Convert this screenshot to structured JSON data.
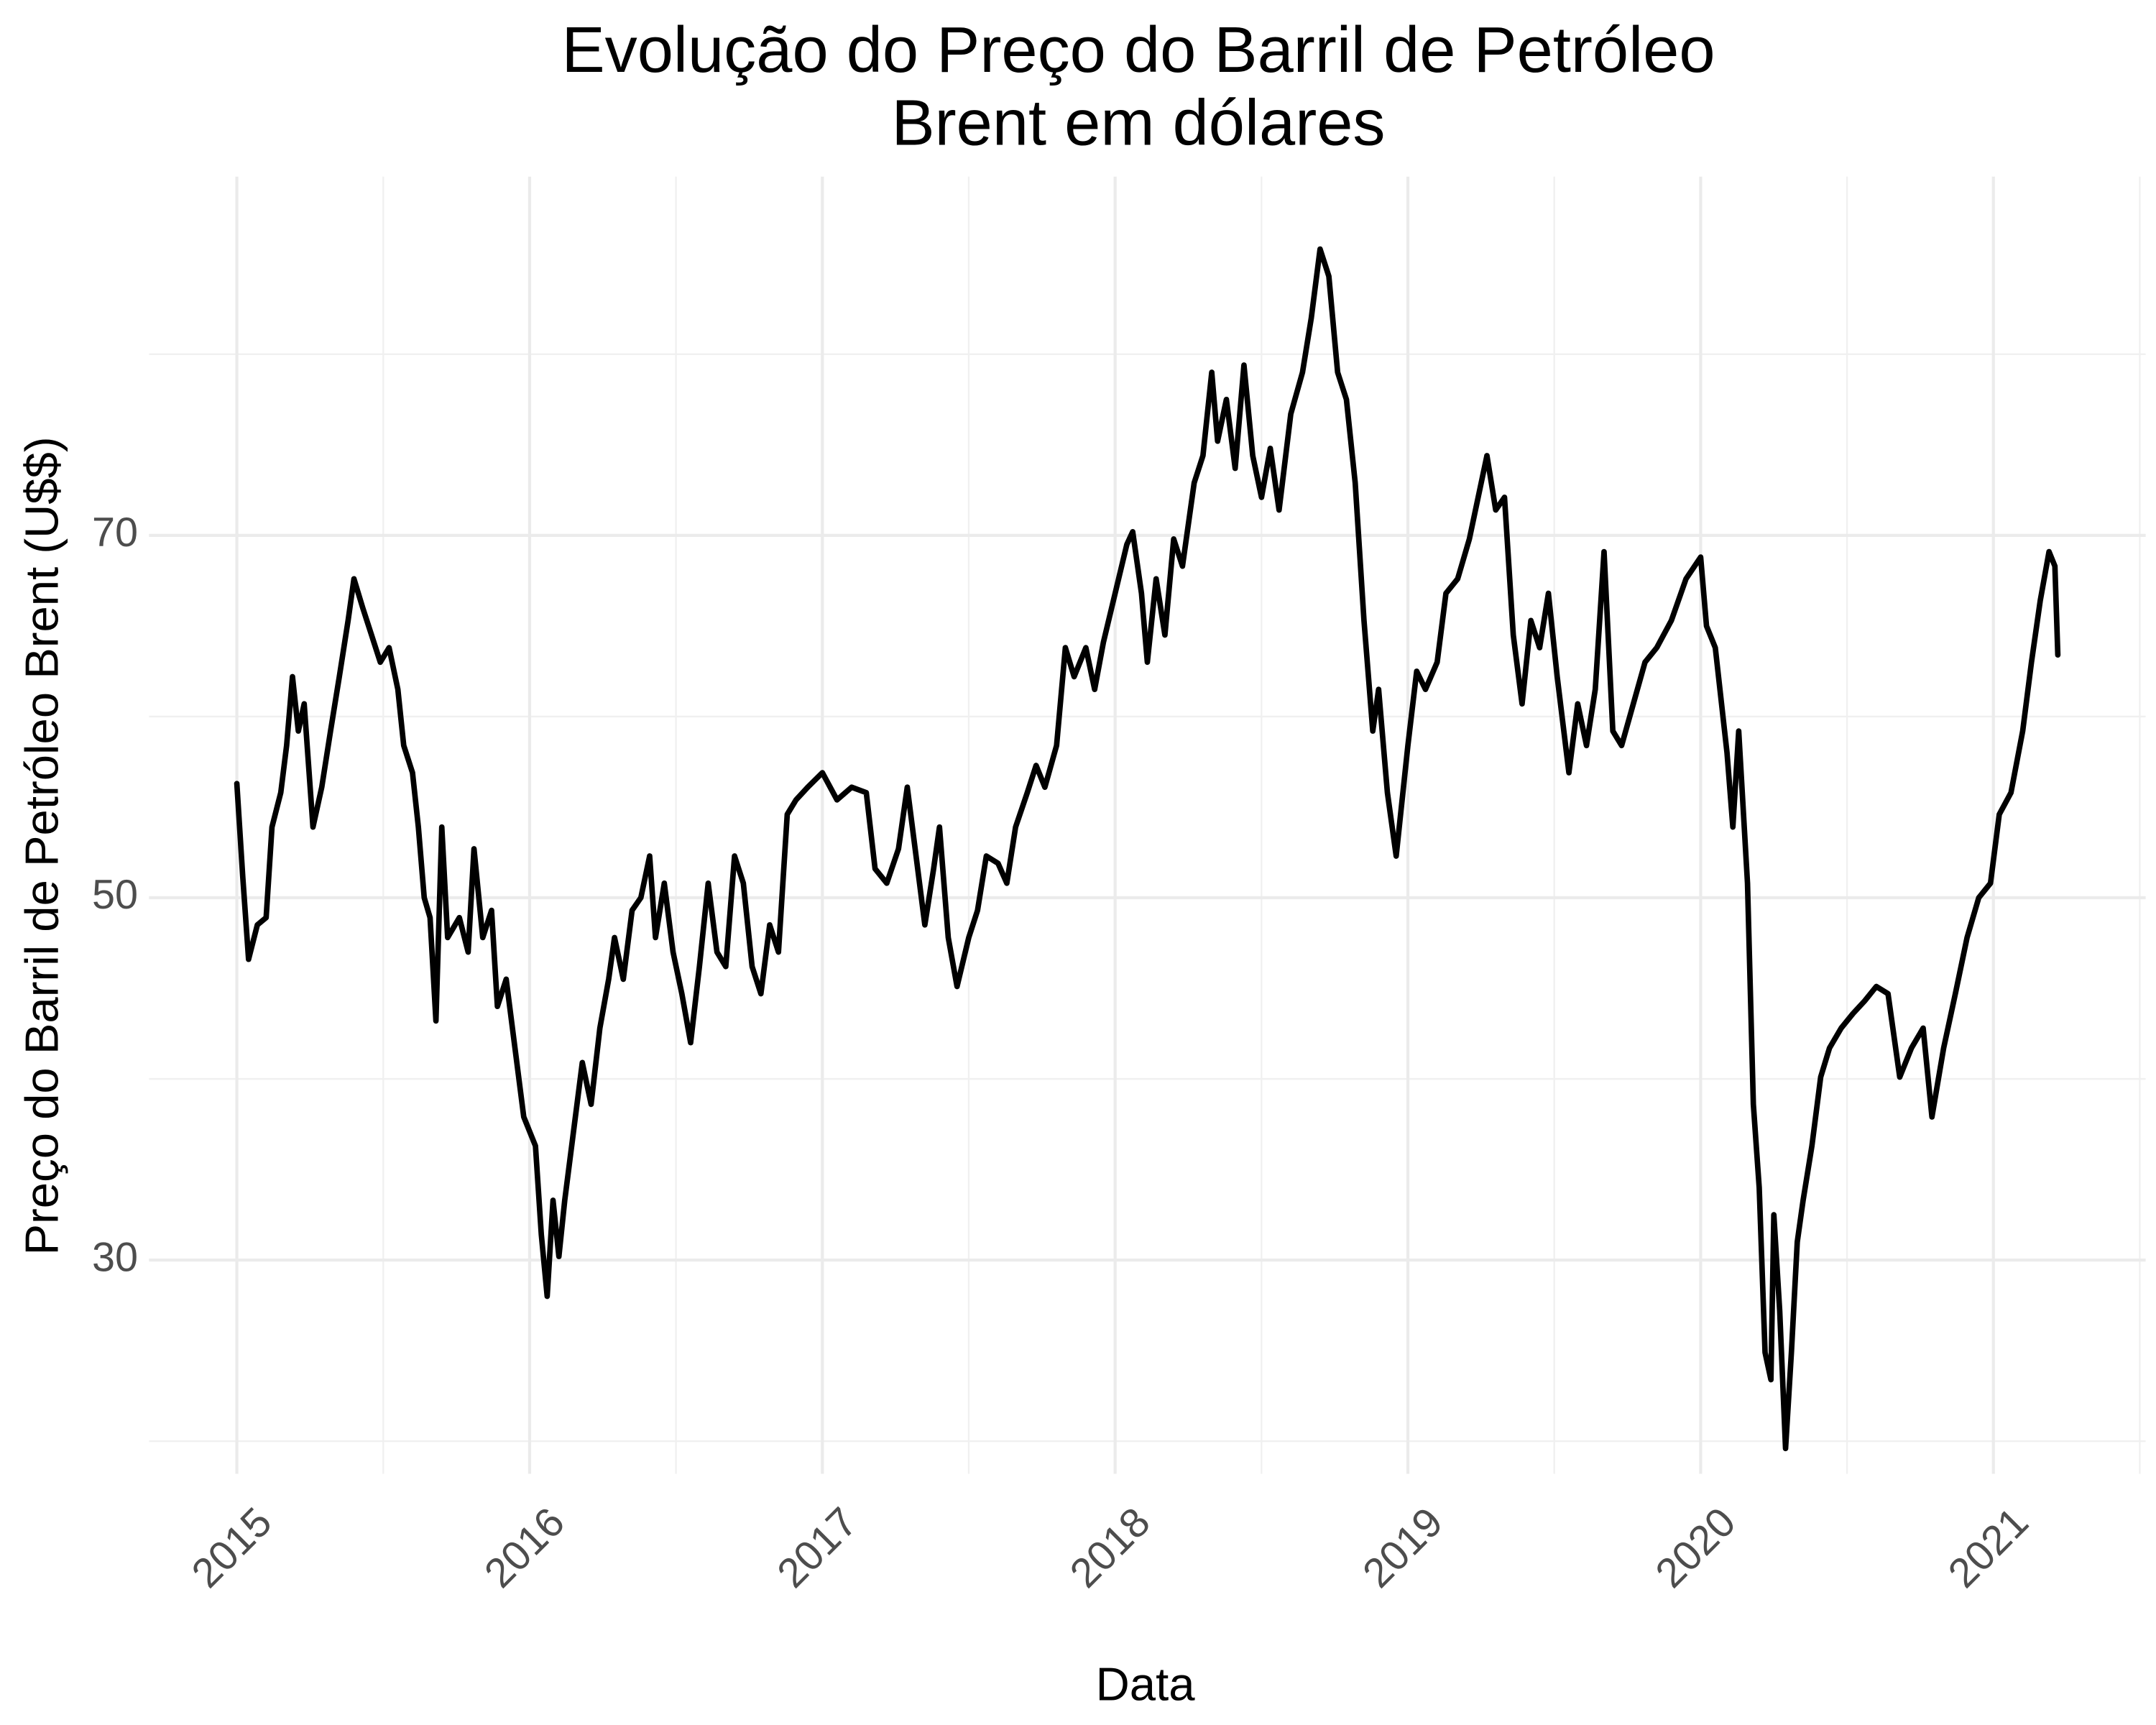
{
  "chart_data": {
    "type": "line",
    "title": [
      "Evolução do Preço do Barril de Petróleo",
      "Brent em dólares"
    ],
    "x_label": "Data",
    "y_label": "Preço do Barril de Petróleo Brent (U$$)",
    "color": "#000000",
    "grid": true,
    "minor_grid": true,
    "xlim": [
      2014.7,
      2021.52
    ],
    "ylim": [
      18.2,
      89.8
    ],
    "xticks": [
      2015,
      2016,
      2017,
      2018,
      2019,
      2020,
      2021
    ],
    "yticks": [
      30,
      50,
      70
    ],
    "x": [
      2015.0,
      2015.02,
      2015.04,
      2015.07,
      2015.1,
      2015.12,
      2015.15,
      2015.17,
      2015.19,
      2015.21,
      2015.23,
      2015.26,
      2015.29,
      2015.32,
      2015.35,
      2015.38,
      2015.4,
      2015.43,
      2015.46,
      2015.49,
      2015.52,
      2015.55,
      2015.57,
      2015.6,
      2015.62,
      2015.64,
      2015.66,
      2015.68,
      2015.7,
      2015.72,
      2015.76,
      2015.79,
      2015.81,
      2015.84,
      2015.87,
      2015.89,
      2015.92,
      2015.95,
      2015.98,
      2016.0,
      2016.02,
      2016.04,
      2016.06,
      2016.08,
      2016.1,
      2016.12,
      2016.15,
      2016.18,
      2016.21,
      2016.24,
      2016.27,
      2016.29,
      2016.32,
      2016.35,
      2016.38,
      2016.41,
      2016.43,
      2016.46,
      2016.49,
      2016.52,
      2016.55,
      2016.58,
      2016.61,
      2016.64,
      2016.67,
      2016.7,
      2016.73,
      2016.76,
      2016.79,
      2016.82,
      2016.85,
      2016.88,
      2016.91,
      2016.95,
      2017.0,
      2017.05,
      2017.1,
      2017.15,
      2017.18,
      2017.22,
      2017.26,
      2017.29,
      2017.32,
      2017.35,
      2017.38,
      2017.4,
      2017.43,
      2017.46,
      2017.5,
      2017.53,
      2017.56,
      2017.6,
      2017.63,
      2017.66,
      2017.7,
      2017.73,
      2017.76,
      2017.8,
      2017.83,
      2017.86,
      2017.9,
      2017.93,
      2017.96,
      2018.0,
      2018.04,
      2018.06,
      2018.09,
      2018.11,
      2018.14,
      2018.17,
      2018.2,
      2018.23,
      2018.27,
      2018.3,
      2018.33,
      2018.35,
      2018.38,
      2018.41,
      2018.44,
      2018.47,
      2018.5,
      2018.53,
      2018.56,
      2018.6,
      2018.64,
      2018.67,
      2018.7,
      2018.73,
      2018.76,
      2018.79,
      2018.82,
      2018.85,
      2018.88,
      2018.9,
      2018.93,
      2018.96,
      2019.0,
      2019.03,
      2019.06,
      2019.1,
      2019.13,
      2019.17,
      2019.21,
      2019.24,
      2019.27,
      2019.3,
      2019.33,
      2019.36,
      2019.39,
      2019.42,
      2019.45,
      2019.48,
      2019.51,
      2019.55,
      2019.58,
      2019.61,
      2019.64,
      2019.67,
      2019.7,
      2019.73,
      2019.77,
      2019.81,
      2019.85,
      2019.9,
      2019.95,
      2020.0,
      2020.02,
      2020.05,
      2020.09,
      2020.11,
      2020.13,
      2020.16,
      2020.18,
      2020.2,
      2020.22,
      2020.24,
      2020.25,
      2020.27,
      2020.29,
      2020.31,
      2020.33,
      2020.35,
      2020.38,
      2020.41,
      2020.44,
      2020.48,
      2020.52,
      2020.56,
      2020.6,
      2020.64,
      2020.68,
      2020.72,
      2020.76,
      2020.79,
      2020.83,
      2020.87,
      2020.91,
      2020.95,
      2020.99,
      2021.02,
      2021.06,
      2021.1,
      2021.13,
      2021.16,
      2021.19,
      2021.21,
      2021.22
    ],
    "values": [
      56.3,
      51.2,
      46.6,
      48.5,
      48.9,
      53.9,
      55.8,
      58.4,
      62.2,
      59.2,
      60.7,
      53.9,
      56.1,
      59.2,
      62.2,
      65.3,
      67.6,
      66.0,
      64.5,
      63.0,
      63.8,
      61.5,
      58.4,
      56.9,
      53.9,
      50.0,
      48.9,
      43.2,
      53.9,
      47.8,
      48.9,
      47.0,
      52.7,
      47.8,
      49.3,
      44.0,
      45.5,
      41.7,
      37.9,
      37.1,
      36.3,
      31.4,
      28.0,
      33.3,
      30.2,
      33.3,
      37.1,
      40.9,
      38.6,
      42.8,
      45.5,
      47.8,
      45.5,
      49.3,
      50.0,
      52.3,
      47.8,
      50.8,
      47.0,
      44.7,
      42.0,
      46.2,
      50.8,
      47.0,
      46.2,
      52.3,
      50.8,
      46.2,
      44.7,
      48.5,
      47.0,
      54.6,
      55.4,
      56.1,
      56.9,
      55.4,
      56.1,
      55.8,
      51.6,
      50.8,
      52.7,
      56.1,
      52.3,
      48.5,
      51.6,
      53.9,
      47.8,
      45.1,
      47.8,
      49.3,
      52.3,
      51.9,
      50.8,
      53.9,
      55.8,
      57.3,
      56.1,
      58.4,
      63.8,
      62.2,
      63.8,
      61.5,
      64.1,
      66.8,
      69.5,
      70.2,
      66.8,
      63.0,
      67.6,
      64.5,
      69.8,
      68.3,
      72.9,
      74.4,
      79.0,
      75.2,
      77.5,
      73.7,
      79.4,
      74.4,
      72.1,
      74.8,
      71.4,
      76.7,
      79.0,
      82.0,
      85.8,
      84.3,
      79.0,
      77.5,
      72.9,
      65.3,
      59.2,
      61.5,
      55.8,
      52.3,
      58.4,
      62.5,
      61.5,
      63.0,
      66.8,
      67.6,
      69.8,
      72.1,
      74.4,
      71.4,
      72.1,
      64.5,
      60.7,
      65.3,
      63.8,
      66.8,
      62.2,
      56.9,
      60.7,
      58.4,
      61.5,
      69.1,
      59.2,
      58.4,
      60.7,
      63.0,
      63.8,
      65.3,
      67.6,
      68.8,
      65.0,
      63.8,
      58.0,
      53.9,
      59.2,
      50.8,
      38.6,
      34.0,
      24.9,
      23.4,
      32.5,
      27.2,
      19.6,
      24.9,
      31.0,
      33.3,
      36.3,
      40.1,
      41.7,
      42.8,
      43.6,
      44.3,
      45.1,
      44.7,
      40.1,
      41.7,
      42.8,
      37.9,
      41.7,
      44.7,
      47.8,
      50.0,
      50.8,
      54.6,
      55.8,
      59.2,
      63.0,
      66.4,
      69.1,
      68.3,
      63.4
    ]
  }
}
